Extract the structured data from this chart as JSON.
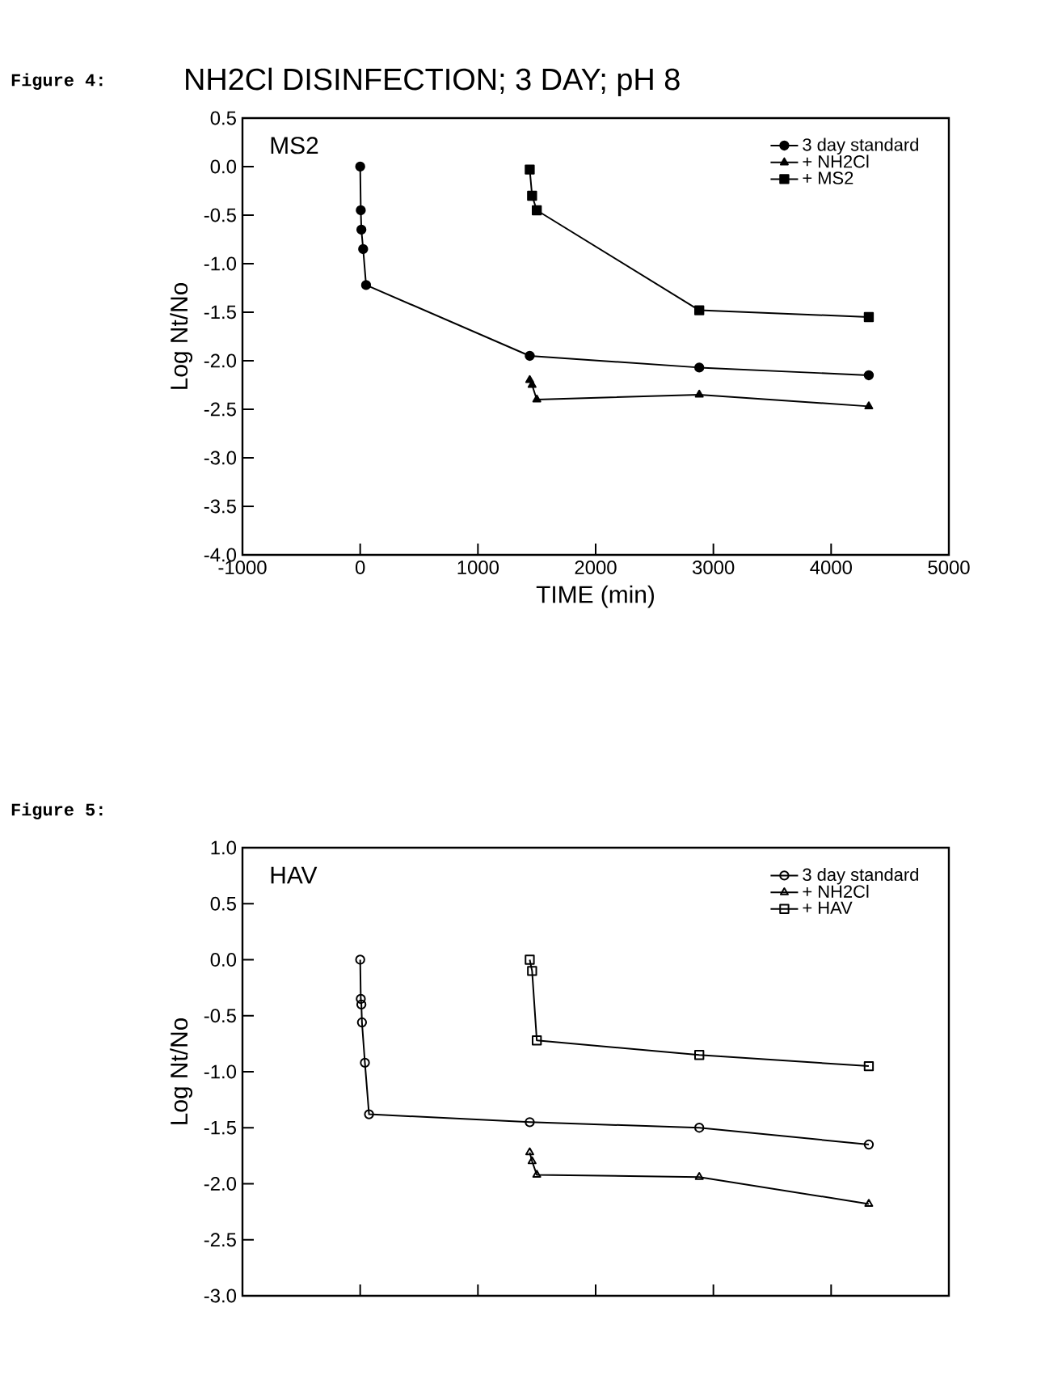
{
  "chart_data": [
    {
      "type": "line",
      "title": "NH2Cl DISINFECTION; 3 DAY; pH 8",
      "annotations": [
        "Figure 4:",
        "MS2"
      ],
      "xlabel": "TIME (min)",
      "ylabel": "Log Nt/No",
      "xlim": [
        -1000,
        5000
      ],
      "xticks": [
        -1000,
        0,
        1000,
        2000,
        3000,
        4000,
        5000
      ],
      "ylim": [
        -4,
        0.5
      ],
      "yticks": [
        {
          "value": 0.5,
          "label": "0.5"
        },
        {
          "value": 0,
          "label": "0.0"
        },
        {
          "value": -0.5,
          "label": "-0.5"
        },
        {
          "value": -1,
          "label": "-1.0"
        },
        {
          "value": -1.5,
          "label": "-1.5"
        },
        {
          "value": -2,
          "label": "-2.0"
        },
        {
          "value": -2.5,
          "label": "-2.5"
        },
        {
          "value": -3,
          "label": "-3.0"
        },
        {
          "value": -3.5,
          "label": "-3.5"
        },
        {
          "value": -4,
          "label": "-4.0"
        }
      ],
      "legend": "top right",
      "line_style": "solid",
      "series": [
        {
          "name": "3 day standard",
          "color": "#000000",
          "marker": "circle",
          "x": [
            0,
            5,
            10,
            25,
            50,
            1440,
            2880,
            4320
          ],
          "values": [
            0,
            -0.45,
            -0.65,
            -0.85,
            -1.22,
            -1.95,
            -2.07,
            -2.15
          ]
        },
        {
          "name": "+ NH2Cl",
          "color": "#000000",
          "marker": "triangle",
          "x": [
            1440,
            1460,
            1500,
            2880,
            4320
          ],
          "values": [
            -2.2,
            -2.25,
            -2.4,
            -2.35,
            -2.47
          ]
        },
        {
          "name": "+ MS2",
          "color": "#000000",
          "marker": "square",
          "x": [
            1440,
            1460,
            1500,
            2880,
            4320
          ],
          "values": [
            -0.03,
            -0.3,
            -0.45,
            -1.48,
            -1.55
          ]
        }
      ]
    },
    {
      "type": "line",
      "annotations": [
        "Figure 5:",
        "HAV"
      ],
      "ylabel": "Log Nt/No",
      "tick_labels": "y",
      "xlim": [
        -1000,
        5000
      ],
      "xticks": [
        -1000,
        0,
        1000,
        2000,
        3000,
        4000,
        5000
      ],
      "ylim": [
        -3,
        1
      ],
      "yticks": [
        {
          "value": 1,
          "label": "1.0"
        },
        {
          "value": 0.5,
          "label": "0.5"
        },
        {
          "value": 0,
          "label": "0.0"
        },
        {
          "value": -0.5,
          "label": "-0.5"
        },
        {
          "value": -1,
          "label": "-1.0"
        },
        {
          "value": -1.5,
          "label": "-1.5"
        },
        {
          "value": -2,
          "label": "-2.0"
        },
        {
          "value": -2.5,
          "label": "-2.5"
        },
        {
          "value": -3,
          "label": "-3.0"
        }
      ],
      "legend": "top right",
      "line_style": "solid",
      "series": [
        {
          "name": "3 day standard",
          "color": "#000000",
          "marker": "circle",
          "x": [
            0,
            5,
            10,
            15,
            40,
            75,
            1440,
            2880,
            4320
          ],
          "values": [
            0,
            -0.35,
            -0.4,
            -0.56,
            -0.92,
            -1.38,
            -1.45,
            -1.5,
            -1.65
          ]
        },
        {
          "name": "+ NH2Cl",
          "color": "#000000",
          "marker": "triangle",
          "x": [
            1440,
            1460,
            1500,
            2880,
            4320
          ],
          "values": [
            -1.72,
            -1.8,
            -1.92,
            -1.94,
            -2.18
          ]
        },
        {
          "name": "+ HAV",
          "color": "#000000",
          "marker": "square",
          "x": [
            1440,
            1460,
            1500,
            2880,
            4320
          ],
          "values": [
            0,
            -0.1,
            -0.72,
            -0.85,
            -0.95
          ]
        }
      ]
    }
  ]
}
